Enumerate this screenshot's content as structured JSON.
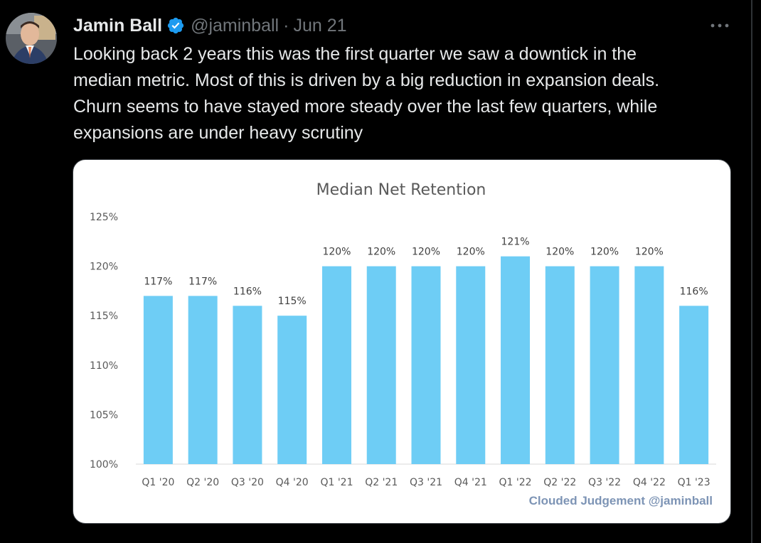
{
  "tweet": {
    "author_name": "Jamin Ball",
    "handle": "@jaminball",
    "separator": "·",
    "date": "Jun 21",
    "text_lines": [
      "Looking back 2 years this was the first quarter we saw a downtick in the",
      "median metric. Most of this is driven by a big reduction in expansion deals.",
      "Churn seems to have stayed more steady over the last few quarters, while",
      "expansions are under heavy scrutiny"
    ],
    "more_icon": "more-horizontal-icon",
    "verified_icon": "verified-badge-icon"
  },
  "colors": {
    "background": "#000000",
    "text": "#e7e9ea",
    "muted": "#71767b",
    "verified": "#1d9bf0",
    "bar": "#6ecdf5",
    "watermark": "#7d94b5"
  },
  "chart_data": {
    "type": "bar",
    "title": "Median Net Retention",
    "categories": [
      "Q1 '20",
      "Q2 '20",
      "Q3 '20",
      "Q4 '20",
      "Q1 '21",
      "Q2 '21",
      "Q3 '21",
      "Q4 '21",
      "Q1 '22",
      "Q2 '22",
      "Q3 '22",
      "Q4 '22",
      "Q1 '23"
    ],
    "values": [
      117,
      117,
      116,
      115,
      120,
      120,
      120,
      120,
      121,
      120,
      120,
      120,
      116
    ],
    "data_labels": [
      "117%",
      "117%",
      "116%",
      "115%",
      "120%",
      "120%",
      "120%",
      "120%",
      "121%",
      "120%",
      "120%",
      "120%",
      "116%"
    ],
    "y_ticks": [
      100,
      105,
      110,
      115,
      120,
      125
    ],
    "y_tick_labels": [
      "100%",
      "105%",
      "110%",
      "115%",
      "120%",
      "125%"
    ],
    "ylim": [
      100,
      125
    ],
    "xlabel": "",
    "ylabel": "",
    "grid": false,
    "watermark": "Clouded Judgement @jaminball"
  }
}
